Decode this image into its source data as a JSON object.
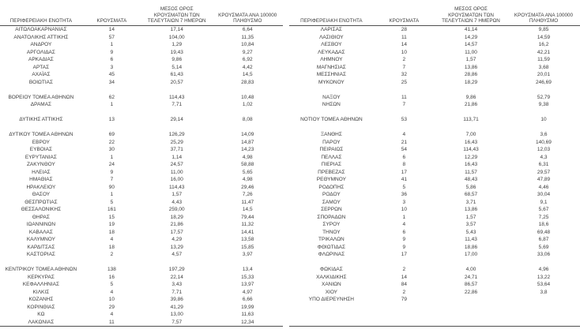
{
  "headers": {
    "region": "ΠΕΡΙΦΕΡΕΙΑΚΗ ΕΝΟΤΗΤΑ",
    "cases": "ΚΡΟΥΣΜΑΤΑ",
    "avg7": "ΜΕΣΟΣ ΟΡΟΣ ΚΡΟΥΣΜΑΤΩΝ ΤΩΝ ΤΕΛΕΥΤΑΙΩΝ 7 ΗΜΕΡΩΝ",
    "per100k": "ΚΡΟΥΣΜΑΤΑ ΑΝΑ 100000 ΠΛΗΘΥΣΜΟ"
  },
  "left_rows": [
    [
      "ΑΙΤΩΛΟΑΚΑΡΝΑΝΙΑΣ",
      "14",
      "17,14",
      "6,64"
    ],
    [
      "ΑΝΑΤΟΛΙΚΗΣ ΑΤΤΙΚΗΣ",
      "57",
      "104,00",
      "11,35"
    ],
    [
      "ΑΝΔΡΟΥ",
      "1",
      "1,29",
      "10,84"
    ],
    [
      "ΑΡΓΟΛΙΔΑΣ",
      "9",
      "19,43",
      "9,27"
    ],
    [
      "ΑΡΚΑΔΙΑΣ",
      "6",
      "9,86",
      "6,92"
    ],
    [
      "ΑΡΤΑΣ",
      "3",
      "5,14",
      "4,42"
    ],
    [
      "ΑΧΑΪΑΣ",
      "45",
      "61,43",
      "14,5"
    ],
    [
      "ΒΟΙΩΤΙΑΣ",
      "34",
      "20,57",
      "28,83"
    ],
    null,
    [
      "ΒΟΡΕΙΟΥ ΤΟΜΕΑ ΑΘΗΝΩΝ",
      "62",
      "114,43",
      "10,48"
    ],
    [
      "ΔΡΑΜΑΣ",
      "1",
      "7,71",
      "1,02"
    ],
    null,
    [
      "ΔΥΤΙΚΗΣ ΑΤΤΙΚΗΣ",
      "13",
      "29,14",
      "8,08"
    ],
    null,
    [
      "ΔΥΤΙΚΟΥ ΤΟΜΕΑ ΑΘΗΝΩΝ",
      "69",
      "126,29",
      "14,09"
    ],
    [
      "ΕΒΡΟΥ",
      "22",
      "25,29",
      "14,87"
    ],
    [
      "ΕΥΒΟΙΑΣ",
      "30",
      "37,71",
      "14,23"
    ],
    [
      "ΕΥΡΥΤΑΝΙΑΣ",
      "1",
      "1,14",
      "4,98"
    ],
    [
      "ΖΑΚΥΝΘΟΥ",
      "24",
      "24,57",
      "58,88"
    ],
    [
      "ΗΛΕΙΑΣ",
      "9",
      "11,00",
      "5,65"
    ],
    [
      "ΗΜΑΘΙΑΣ",
      "7",
      "16,00",
      "4,98"
    ],
    [
      "ΗΡΑΚΛΕΙΟΥ",
      "90",
      "114,43",
      "29,46"
    ],
    [
      "ΘΑΣΟΥ",
      "1",
      "1,57",
      "7,26"
    ],
    [
      "ΘΕΣΠΡΩΤΙΑΣ",
      "5",
      "4,43",
      "11,47"
    ],
    [
      "ΘΕΣΣΑΛΟΝΙΚΗΣ",
      "161",
      "259,00",
      "14,5"
    ],
    [
      "ΘΗΡΑΣ",
      "15",
      "18,29",
      "79,44"
    ],
    [
      "ΙΩΑΝΝΙΝΩΝ",
      "19",
      "21,86",
      "11,32"
    ],
    [
      "ΚΑΒΑΛΑΣ",
      "18",
      "17,57",
      "14,41"
    ],
    [
      "ΚΑΛΥΜΝΟΥ",
      "4",
      "4,29",
      "13,58"
    ],
    [
      "ΚΑΡΔΙΤΣΑΣ",
      "18",
      "13,29",
      "15,85"
    ],
    [
      "ΚΑΣΤΟΡΙΑΣ",
      "2",
      "4,57",
      "3,97"
    ],
    null,
    [
      "ΚΕΝΤΡΙΚΟΥ ΤΟΜΕΑ ΑΘΗΝΩΝ",
      "138",
      "197,29",
      "13,4"
    ],
    [
      "ΚΕΡΚΥΡΑΣ",
      "16",
      "22,14",
      "15,33"
    ],
    [
      "ΚΕΦΑΛΛΗΝΙΑΣ",
      "5",
      "3,43",
      "13,97"
    ],
    [
      "ΚΙΛΚΙΣ",
      "4",
      "7,71",
      "4,97"
    ],
    [
      "ΚΟΖΑΝΗΣ",
      "10",
      "39,86",
      "6,66"
    ],
    [
      "ΚΟΡΙΝΘΙΑΣ",
      "29",
      "41,29",
      "19,99"
    ],
    [
      "ΚΩ",
      "4",
      "13,00",
      "11,63"
    ],
    [
      "ΛΑΚΩΝΙΑΣ",
      "11",
      "7,57",
      "12,34"
    ]
  ],
  "right_rows": [
    [
      "ΛΑΡΙΣΑΣ",
      "28",
      "41,14",
      "9,85"
    ],
    [
      "ΛΑΣΙΘΙΟΥ",
      "11",
      "14,29",
      "14,59"
    ],
    [
      "ΛΕΣΒΟΥ",
      "14",
      "14,57",
      "16,2"
    ],
    [
      "ΛΕΥΚΑΔΑΣ",
      "10",
      "11,00",
      "42,21"
    ],
    [
      "ΛΗΜΝΟΥ",
      "2",
      "1,57",
      "11,59"
    ],
    [
      "ΜΑΓΝΗΣΙΑΣ",
      "7",
      "13,86",
      "3,68"
    ],
    [
      "ΜΕΣΣΗΝΙΑΣ",
      "32",
      "28,86",
      "20,01"
    ],
    [
      "ΜΥΚΟΝΟΥ",
      "25",
      "18,29",
      "246,69"
    ],
    null,
    [
      "ΝΑΞΟΥ",
      "11",
      "9,86",
      "52,79"
    ],
    [
      "ΝΗΣΩΝ",
      "7",
      "21,86",
      "9,38"
    ],
    null,
    [
      "ΝΟΤΙΟΥ ΤΟΜΕΑ ΑΘΗΝΩΝ",
      "53",
      "113,71",
      "10"
    ],
    null,
    [
      "ΞΑΝΘΗΣ",
      "4",
      "7,00",
      "3,6"
    ],
    [
      "ΠΑΡΟΥ",
      "21",
      "16,43",
      "140,69"
    ],
    [
      "ΠΕΙΡΑΙΩΣ",
      "54",
      "114,43",
      "12,03"
    ],
    [
      "ΠΕΛΛΑΣ",
      "6",
      "12,29",
      "4,3"
    ],
    [
      "ΠΙΕΡΙΑΣ",
      "8",
      "16,43",
      "6,31"
    ],
    [
      "ΠΡΕΒΕΖΑΣ",
      "17",
      "11,57",
      "29,57"
    ],
    [
      "ΡΕΘΥΜΝΟΥ",
      "41",
      "48,43",
      "47,89"
    ],
    [
      "ΡΟΔΟΠΗΣ",
      "5",
      "5,86",
      "4,46"
    ],
    [
      "ΡΟΔΟΥ",
      "36",
      "68,57",
      "30,04"
    ],
    [
      "ΣΑΜΟΥ",
      "3",
      "3,71",
      "9,1"
    ],
    [
      "ΣΕΡΡΩΝ",
      "10",
      "13,86",
      "5,67"
    ],
    [
      "ΣΠΟΡΑΔΩΝ",
      "1",
      "1,57",
      "7,25"
    ],
    [
      "ΣΥΡΟΥ",
      "4",
      "3,57",
      "18,6"
    ],
    [
      "ΤΗΝΟΥ",
      "6",
      "5,43",
      "69,48"
    ],
    [
      "ΤΡΙΚΑΛΩΝ",
      "9",
      "11,43",
      "6,87"
    ],
    [
      "ΦΘΙΩΤΙΔΑΣ",
      "9",
      "18,86",
      "5,69"
    ],
    [
      "ΦΛΩΡΙΝΑΣ",
      "17",
      "17,00",
      "33,06"
    ],
    null,
    [
      "ΦΩΚΙΔΑΣ",
      "2",
      "4,00",
      "4,96"
    ],
    [
      "ΧΑΛΚΙΔΙΚΗΣ",
      "14",
      "24,71",
      "13,22"
    ],
    [
      "ΧΑΝΙΩΝ",
      "84",
      "86,57",
      "53,64"
    ],
    [
      "ΧΙΟΥ",
      "2",
      "22,86",
      "3,8"
    ],
    [
      "ΥΠΟ ΔΙΕΡΕΥΝΗΣΗ",
      "79",
      "",
      ""
    ],
    null,
    null,
    null
  ]
}
